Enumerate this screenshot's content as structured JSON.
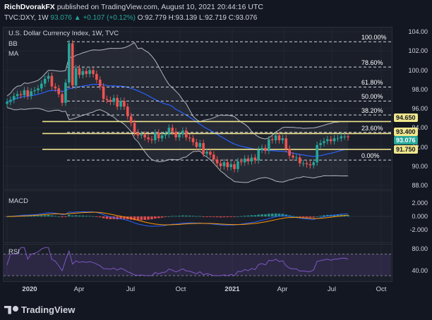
{
  "header": {
    "author": "RichDvorakFX",
    "published_text": "published on TradingView.com, August 10, 2021 20:44:16 UTC",
    "symbol": "TVC:DXY, 1W",
    "last": "93.076",
    "change": "+0.107 (+0.12%)",
    "ohlc": "O:92.779 H:93.139 L:92.719 C:93.076"
  },
  "main_panel": {
    "title": "U.S. Dollar Currency Index, 1W, TVC",
    "indicators": [
      "BB",
      "MA"
    ],
    "y_ticks": [
      "104.00",
      "102.00",
      "100.00",
      "98.00",
      "96.00",
      "94.00",
      "92.00",
      "90.00",
      "88.00"
    ],
    "fib_levels": [
      {
        "label": "100.00%",
        "value": 102.95
      },
      {
        "label": "78.60%",
        "value": 100.32
      },
      {
        "label": "61.80%",
        "value": 98.24
      },
      {
        "label": "50.00%",
        "value": 96.78
      },
      {
        "label": "38.20%",
        "value": 95.33
      },
      {
        "label": "23.60%",
        "value": 93.52
      },
      {
        "label": "0.00%",
        "value": 90.63
      }
    ],
    "price_tags": [
      {
        "label": "94.650",
        "color": "#f0e68c",
        "text_color": "#131722"
      },
      {
        "label": "93.400",
        "color": "#f0e68c",
        "text_color": "#131722"
      },
      {
        "label": "93.076",
        "color": "#26a69a",
        "text_color": "#ffffff"
      },
      {
        "label": "91.750",
        "color": "#f0e68c",
        "text_color": "#131722"
      }
    ]
  },
  "macd_panel": {
    "title": "MACD",
    "y_ticks": [
      "2.000",
      "0.000",
      "-2.000"
    ]
  },
  "rsi_panel": {
    "title": "RSI",
    "y_ticks": [
      "80.00",
      "40.00"
    ]
  },
  "x_axis": [
    {
      "label": "2020",
      "bold": true
    },
    {
      "label": "Apr",
      "bold": false
    },
    {
      "label": "Jul",
      "bold": false
    },
    {
      "label": "Oct",
      "bold": false
    },
    {
      "label": "2021",
      "bold": true
    },
    {
      "label": "Apr",
      "bold": false
    },
    {
      "label": "Jul",
      "bold": false
    },
    {
      "label": "Oct",
      "bold": false
    }
  ],
  "footer": {
    "brand": "TradingView"
  },
  "colors": {
    "up": "#26a69a",
    "down": "#ef5350",
    "support": "#f0e68c",
    "ma": "#2962ff",
    "bb": "#b2b5be"
  },
  "chart_data": {
    "type": "candlestick",
    "title": "U.S. Dollar Currency Index, 1W, TVC",
    "timeframe": "weekly",
    "close": [
      96.7,
      96.9,
      97.3,
      97.5,
      97.4,
      97.9,
      97.3,
      97.8,
      97.9,
      98.1,
      98.6,
      99.1,
      99.4,
      98.3,
      98.1,
      97.5,
      96.6,
      98.7,
      102.8,
      98.4,
      100.2,
      99.5,
      99.9,
      99.6,
      100.0,
      99.6,
      99.0,
      98.3,
      97.0,
      96.9,
      96.7,
      97.1,
      96.2,
      96.8,
      96.2,
      95.2,
      94.5,
      93.5,
      93.2,
      93.3,
      93.0,
      92.8,
      92.7,
      93.5,
      92.9,
      93.2,
      93.3,
      94.0,
      93.6,
      93.0,
      93.3,
      93.7,
      93.0,
      92.9,
      92.5,
      92.0,
      92.4,
      91.3,
      91.5,
      91.2,
      90.7,
      90.3,
      90.0,
      90.4,
      89.9,
      90.2,
      89.7,
      90.5,
      90.4,
      90.8,
      90.5,
      90.9,
      90.6,
      91.7,
      91.9,
      91.6,
      92.8,
      92.7,
      93.2,
      92.7,
      92.9,
      91.8,
      91.1,
      90.9,
      90.9,
      90.3,
      90.3,
      90.2,
      90.1,
      90.4,
      92.2,
      92.4,
      92.6,
      92.8,
      92.6,
      92.9,
      92.9,
      93.1,
      93.1,
      93.0
    ],
    "series": [
      {
        "name": "MA",
        "values": []
      },
      {
        "name": "BB",
        "values": []
      }
    ],
    "support_levels": [
      94.65,
      93.4,
      91.75
    ],
    "ylim": [
      87.5,
      104.5
    ],
    "grid": true
  }
}
